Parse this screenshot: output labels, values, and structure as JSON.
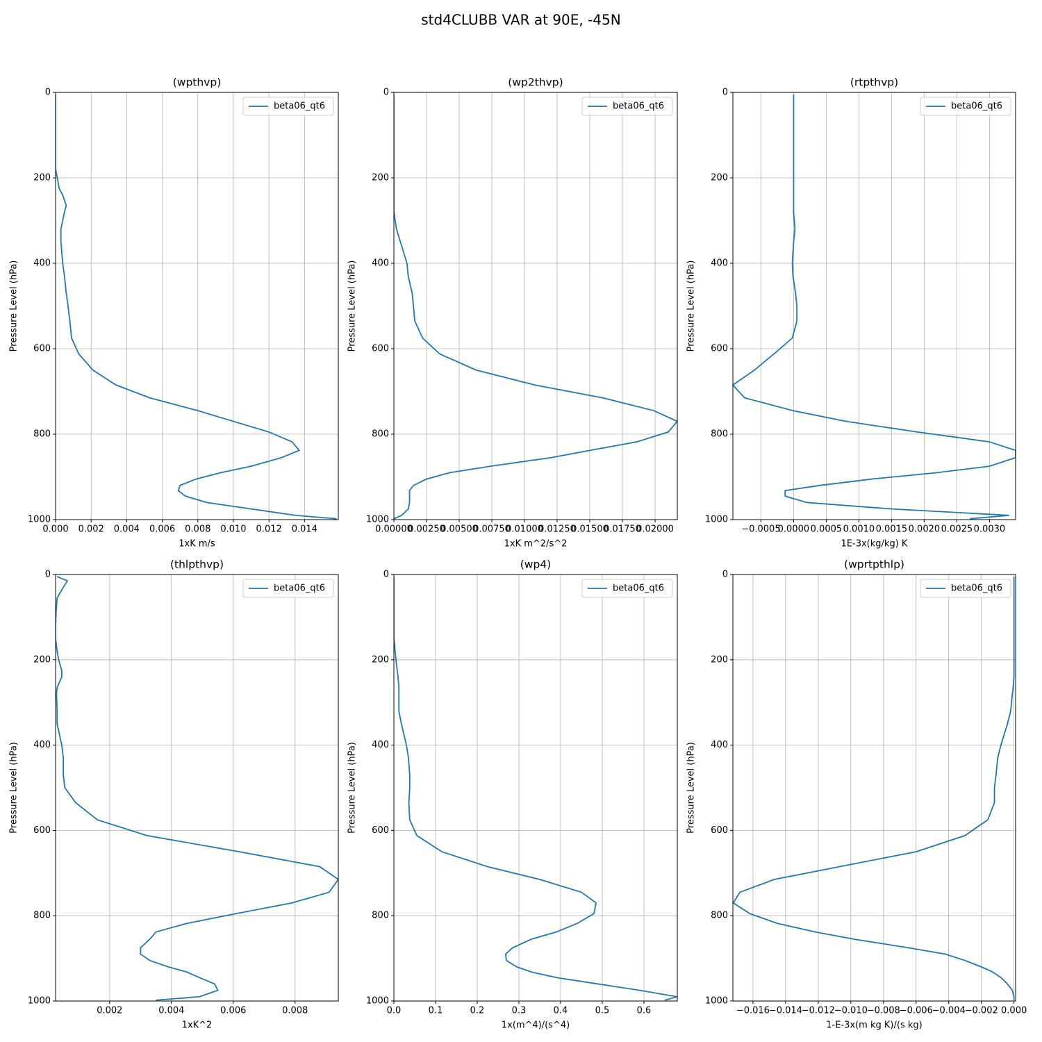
{
  "title": "std4CLUBB VAR at 90E, -45N",
  "chart_data": [
    {
      "type": "line",
      "title": "(wpthvp)",
      "x_label": "1xK m/s",
      "y_label": "Pressure Level (hPa)",
      "y": [
        5,
        15,
        30,
        55,
        85,
        120,
        150,
        180,
        200,
        225,
        240,
        265,
        280,
        320,
        350,
        400,
        430,
        470,
        500,
        535,
        575,
        612,
        650,
        685,
        715,
        745,
        770,
        795,
        818,
        838,
        855,
        875,
        890,
        905,
        920,
        932,
        945,
        960,
        975,
        990,
        998
      ],
      "series": [
        {
          "name": "beta06_qt6",
          "color": "#1f77b4",
          "values": [
            0,
            0,
            0,
            0,
            0,
            0,
            0,
            0,
            0.0001,
            0.0002,
            0.0004,
            0.0006,
            0.0005,
            0.0003,
            0.0003,
            0.0004,
            0.0005,
            0.0006,
            0.0007,
            0.0008,
            0.0009,
            0.0013,
            0.0021,
            0.0034,
            0.0053,
            0.008,
            0.01,
            0.012,
            0.0133,
            0.0137,
            0.0127,
            0.011,
            0.0093,
            0.0079,
            0.007,
            0.0069,
            0.0073,
            0.0085,
            0.011,
            0.0135,
            0.0158
          ]
        }
      ],
      "xlim": [
        0,
        0.0159
      ],
      "xticks": [
        {
          "value": 0,
          "label": "0.000"
        },
        {
          "value": 0.002,
          "label": "0.002"
        },
        {
          "value": 0.004,
          "label": "0.004"
        },
        {
          "value": 0.006,
          "label": "0.006"
        },
        {
          "value": 0.008,
          "label": "0.008"
        },
        {
          "value": 0.01,
          "label": "0.010"
        },
        {
          "value": 0.012,
          "label": "0.012"
        },
        {
          "value": 0.014,
          "label": "0.014"
        }
      ],
      "ylim": [
        1000,
        0
      ],
      "yticks": [
        0,
        200,
        400,
        600,
        800,
        1000
      ],
      "grid": true,
      "legend": "upper right"
    },
    {
      "type": "line",
      "title": "(wp2thvp)",
      "x_label": "1xK m^2/s^2",
      "y_label": "Pressure Level (hPa)",
      "y": [
        5,
        15,
        30,
        55,
        85,
        120,
        150,
        180,
        200,
        225,
        240,
        265,
        280,
        320,
        350,
        400,
        430,
        470,
        500,
        535,
        575,
        612,
        650,
        685,
        715,
        745,
        770,
        795,
        818,
        838,
        855,
        875,
        890,
        905,
        920,
        932,
        945,
        960,
        975,
        990,
        998
      ],
      "series": [
        {
          "name": "beta06_qt6",
          "color": "#1f77b4",
          "values": [
            0,
            0,
            0,
            0,
            0,
            0,
            0,
            0,
            0,
            0,
            0,
            0,
            0,
            0.0002,
            0.0005,
            0.001,
            0.0011,
            0.0014,
            0.0015,
            0.0016,
            0.0022,
            0.0035,
            0.0063,
            0.0108,
            0.016,
            0.0199,
            0.0217,
            0.021,
            0.0186,
            0.015,
            0.012,
            0.0074,
            0.0043,
            0.0025,
            0.0015,
            0.0012,
            0.0012,
            0.0012,
            0.0011,
            0.0006,
            0
          ]
        }
      ],
      "xlim": [
        0,
        0.0217
      ],
      "xticks": [
        {
          "value": 0,
          "label": "0.00000"
        },
        {
          "value": 0.0025,
          "label": "0.00250"
        },
        {
          "value": 0.005,
          "label": "0.00500"
        },
        {
          "value": 0.0075,
          "label": "0.00750"
        },
        {
          "value": 0.01,
          "label": "0.01000"
        },
        {
          "value": 0.0125,
          "label": "0.01250"
        },
        {
          "value": 0.015,
          "label": "0.01500"
        },
        {
          "value": 0.0175,
          "label": "0.01750"
        },
        {
          "value": 0.02,
          "label": "0.02000"
        }
      ],
      "ylim": [
        1000,
        0
      ],
      "yticks": [
        0,
        200,
        400,
        600,
        800,
        1000
      ],
      "grid": true,
      "legend": "upper right"
    },
    {
      "type": "line",
      "title": "(rtpthvp)",
      "x_label": "1E-3x(kg/kg) K",
      "y_label": "Pressure Level (hPa)",
      "y": [
        5,
        15,
        30,
        55,
        85,
        120,
        150,
        180,
        200,
        225,
        240,
        265,
        280,
        320,
        350,
        400,
        430,
        470,
        500,
        535,
        575,
        612,
        650,
        685,
        715,
        745,
        770,
        795,
        818,
        838,
        855,
        875,
        890,
        905,
        920,
        932,
        945,
        960,
        975,
        990,
        998
      ],
      "series": [
        {
          "name": "beta06_qt6",
          "color": "#1f77b4",
          "values": [
            0,
            0,
            0,
            0,
            0,
            0,
            0,
            0,
            0,
            0,
            0,
            0,
            0,
            2e-05,
            0,
            -2e-05,
            -1e-05,
            3e-05,
            5e-05,
            5e-05,
            -2e-05,
            -0.0003,
            -0.0006,
            -0.00093,
            -0.00075,
            -1e-05,
            0.0008,
            0.0019,
            0.003,
            0.0034,
            0.0034,
            0.003,
            0.0022,
            0.0012,
            0.0004,
            -0.00013,
            -0.00013,
            0.0002,
            0.0015,
            0.0033,
            0.0027
          ]
        }
      ],
      "xlim": [
        -0.00093,
        0.0034
      ],
      "xticks": [
        {
          "value": -0.0005,
          "label": "−0.0005"
        },
        {
          "value": 0,
          "label": "0.0000"
        },
        {
          "value": 0.0005,
          "label": "0.0005"
        },
        {
          "value": 0.001,
          "label": "0.0010"
        },
        {
          "value": 0.0015,
          "label": "0.0015"
        },
        {
          "value": 0.002,
          "label": "0.0020"
        },
        {
          "value": 0.0025,
          "label": "0.0025"
        },
        {
          "value": 0.003,
          "label": "0.0030"
        }
      ],
      "ylim": [
        1000,
        0
      ],
      "yticks": [
        0,
        200,
        400,
        600,
        800,
        1000
      ],
      "grid": true,
      "legend": "upper right"
    },
    {
      "type": "line",
      "title": "(thlpthvp)",
      "x_label": "1xK^2",
      "y_label": "Pressure Level (hPa)",
      "y": [
        5,
        15,
        30,
        55,
        85,
        120,
        150,
        180,
        200,
        225,
        240,
        265,
        280,
        320,
        350,
        400,
        430,
        470,
        500,
        535,
        575,
        612,
        650,
        685,
        715,
        745,
        770,
        795,
        818,
        838,
        855,
        875,
        890,
        905,
        920,
        932,
        945,
        960,
        975,
        990,
        998
      ],
      "series": [
        {
          "name": "beta06_qt6",
          "color": "#1f77b4",
          "values": [
            0.0003,
            0.00063,
            0.0005,
            0.0003,
            0.00027,
            0.00025,
            0.00025,
            0.0003,
            0.00035,
            0.00045,
            0.00045,
            0.0003,
            0.00028,
            0.0003,
            0.0003,
            0.00045,
            0.0005,
            0.0005,
            0.00055,
            0.0009,
            0.0016,
            0.0032,
            0.0062,
            0.0088,
            0.0094,
            0.0091,
            0.0079,
            0.0061,
            0.0045,
            0.0035,
            0.0033,
            0.003,
            0.003,
            0.0033,
            0.0039,
            0.0045,
            0.0049,
            0.0054,
            0.0055,
            0.0049,
            0.0035
          ]
        }
      ],
      "xlim": [
        0.00025,
        0.0094
      ],
      "xticks": [
        0.002,
        0.004,
        0.006,
        0.008
      ],
      "ylim": [
        1000,
        0
      ],
      "yticks": [
        0,
        200,
        400,
        600,
        800,
        1000
      ],
      "grid": true,
      "legend": "upper right"
    },
    {
      "type": "line",
      "title": "(wp4)",
      "x_label": "1x(m^4)/(s^4)",
      "y_label": "Pressure Level (hPa)",
      "y": [
        5,
        15,
        30,
        55,
        85,
        120,
        150,
        180,
        200,
        225,
        240,
        265,
        280,
        320,
        350,
        400,
        430,
        470,
        500,
        535,
        575,
        612,
        650,
        685,
        715,
        745,
        770,
        795,
        818,
        838,
        855,
        875,
        890,
        905,
        920,
        932,
        945,
        960,
        975,
        990,
        998
      ],
      "series": [
        {
          "name": "beta06_qt6",
          "color": "#1f77b4",
          "values": [
            0,
            0,
            0,
            0,
            0,
            0,
            0,
            0.003,
            0.005,
            0.008,
            0.01,
            0.012,
            0.012,
            0.012,
            0.018,
            0.03,
            0.035,
            0.038,
            0.038,
            0.036,
            0.038,
            0.055,
            0.115,
            0.225,
            0.35,
            0.45,
            0.485,
            0.48,
            0.44,
            0.39,
            0.33,
            0.285,
            0.268,
            0.27,
            0.295,
            0.33,
            0.39,
            0.49,
            0.59,
            0.68,
            0.65
          ]
        }
      ],
      "xlim": [
        0,
        0.68
      ],
      "xticks": [
        {
          "value": 0,
          "label": "0.0"
        },
        0.1,
        0.2,
        0.3,
        0.4,
        0.5,
        0.6
      ],
      "ylim": [
        1000,
        0
      ],
      "yticks": [
        0,
        200,
        400,
        600,
        800,
        1000
      ],
      "grid": true,
      "legend": "upper right"
    },
    {
      "type": "line",
      "title": "(wprtpthlp)",
      "x_label": "1-E-3x(m kg K)/(s kg)",
      "y_label": "Pressure Level (hPa)",
      "y": [
        5,
        15,
        30,
        55,
        85,
        120,
        150,
        180,
        200,
        225,
        240,
        265,
        280,
        320,
        350,
        400,
        430,
        470,
        500,
        535,
        575,
        612,
        650,
        685,
        715,
        745,
        770,
        795,
        818,
        838,
        855,
        875,
        890,
        905,
        920,
        932,
        945,
        960,
        975,
        990,
        998
      ],
      "series": [
        {
          "name": "beta06_qt6",
          "color": "#1f77b4",
          "values": [
            0,
            0,
            0,
            0,
            0,
            0,
            0,
            0,
            0,
            0,
            0,
            -5e-05,
            -0.0001,
            -0.0002,
            -0.0004,
            -0.0008,
            -0.001,
            -0.0011,
            -0.0012,
            -0.0012,
            -0.0016,
            -0.003,
            -0.006,
            -0.0107,
            -0.0147,
            -0.0168,
            -0.0172,
            -0.0162,
            -0.0145,
            -0.0122,
            -0.0098,
            -0.0065,
            -0.0042,
            -0.003,
            -0.002,
            -0.0013,
            -0.0008,
            -0.0004,
            -0.0001,
            0,
            0
          ]
        }
      ],
      "xlim": [
        -0.01723,
        0.0001
      ],
      "xticks": [
        {
          "value": -0.016,
          "label": "−0.016"
        },
        {
          "value": -0.014,
          "label": "−0.014"
        },
        {
          "value": -0.012,
          "label": "−0.012"
        },
        {
          "value": -0.01,
          "label": "−0.010"
        },
        {
          "value": -0.008,
          "label": "−0.008"
        },
        {
          "value": -0.006,
          "label": "−0.006"
        },
        {
          "value": -0.004,
          "label": "−0.004"
        },
        {
          "value": -0.002,
          "label": "−0.002"
        },
        {
          "value": 0,
          "label": "0.000"
        }
      ],
      "ylim": [
        1000,
        0
      ],
      "yticks": [
        0,
        200,
        400,
        600,
        800,
        1000
      ],
      "grid": true,
      "legend": "upper right"
    }
  ]
}
